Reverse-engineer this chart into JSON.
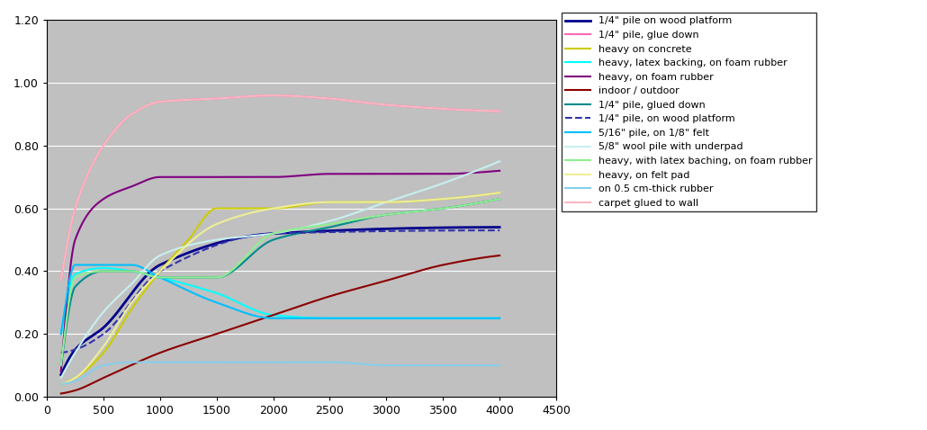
{
  "xlim": [
    0,
    4500
  ],
  "ylim": [
    0.0,
    1.2
  ],
  "yticks": [
    0.0,
    0.2,
    0.4,
    0.6,
    0.8,
    1.0,
    1.2
  ],
  "xticks": [
    0,
    500,
    1000,
    1500,
    2000,
    2500,
    3000,
    3500,
    4000,
    4500
  ],
  "bg_color": "#c0c0c0",
  "fig_width": 10.3,
  "fig_height": 4.78,
  "series": [
    {
      "label": "1/4\" pile on wood platform",
      "color": "#00008B",
      "linewidth": 2.0,
      "linestyle": "-",
      "x": [
        125,
        250,
        500,
        1000,
        2000,
        4000
      ],
      "y": [
        0.07,
        0.15,
        0.22,
        0.42,
        0.52,
        0.54
      ]
    },
    {
      "label": "1/4\" pile, glue down",
      "color": "#FF69B4",
      "linewidth": 1.5,
      "linestyle": "-",
      "x": [
        125,
        250,
        500,
        750,
        1000,
        1500,
        2000,
        2500,
        3000,
        4000
      ],
      "y": [
        0.37,
        0.6,
        0.8,
        0.9,
        0.94,
        0.95,
        0.96,
        0.95,
        0.93,
        0.91
      ]
    },
    {
      "label": "heavy on concrete",
      "color": "#CCCC00",
      "linewidth": 1.5,
      "linestyle": "-",
      "x": [
        125,
        250,
        500,
        750,
        1000,
        1250,
        1500,
        2000,
        2500,
        3000,
        3500,
        4000
      ],
      "y": [
        0.04,
        0.06,
        0.14,
        0.28,
        0.4,
        0.5,
        0.6,
        0.6,
        0.62,
        0.62,
        0.63,
        0.65
      ]
    },
    {
      "label": "heavy, latex backing, on foam rubber",
      "color": "#00FFFF",
      "linewidth": 1.5,
      "linestyle": "-",
      "x": [
        125,
        250,
        500,
        750,
        1000,
        1500,
        2000,
        2500,
        3000,
        3500,
        4000
      ],
      "y": [
        0.2,
        0.39,
        0.41,
        0.4,
        0.38,
        0.33,
        0.26,
        0.25,
        0.25,
        0.25,
        0.25
      ]
    },
    {
      "label": "heavy, on foam rubber",
      "color": "#800080",
      "linewidth": 1.5,
      "linestyle": "-",
      "x": [
        125,
        250,
        500,
        750,
        1000,
        1500,
        2000,
        2500,
        3000,
        3500,
        4000
      ],
      "y": [
        0.08,
        0.5,
        0.63,
        0.67,
        0.7,
        0.7,
        0.7,
        0.71,
        0.71,
        0.71,
        0.72
      ]
    },
    {
      "label": "indoor / outdoor",
      "color": "#8B0000",
      "linewidth": 1.5,
      "linestyle": "-",
      "x": [
        125,
        250,
        500,
        1000,
        1500,
        2000,
        2500,
        3000,
        3500,
        4000
      ],
      "y": [
        0.01,
        0.02,
        0.06,
        0.14,
        0.2,
        0.26,
        0.32,
        0.37,
        0.42,
        0.45
      ]
    },
    {
      "label": "1/4\" pile, glued down",
      "color": "#008B8B",
      "linewidth": 1.5,
      "linestyle": "-",
      "x": [
        125,
        250,
        500,
        750,
        1000,
        1500,
        2000,
        2500,
        3000,
        3500,
        4000
      ],
      "y": [
        0.1,
        0.35,
        0.4,
        0.4,
        0.38,
        0.38,
        0.5,
        0.54,
        0.58,
        0.6,
        0.63
      ]
    },
    {
      "label": "1/4\" pile, on wood platform",
      "color": "#3333AA",
      "linewidth": 1.5,
      "linestyle": "--",
      "x": [
        125,
        250,
        500,
        1000,
        2000,
        4000
      ],
      "y": [
        0.14,
        0.15,
        0.2,
        0.4,
        0.52,
        0.53
      ]
    },
    {
      "label": "5/16\" pile, on 1/8\" felt",
      "color": "#00BFFF",
      "linewidth": 1.5,
      "linestyle": "-",
      "x": [
        125,
        250,
        500,
        750,
        1000,
        1500,
        2000,
        2500,
        3000,
        3500,
        4000
      ],
      "y": [
        0.2,
        0.42,
        0.42,
        0.42,
        0.38,
        0.3,
        0.25,
        0.25,
        0.25,
        0.25,
        0.25
      ]
    },
    {
      "label": "5/8\" wool pile with underpad",
      "color": "#C8F0F0",
      "linewidth": 1.5,
      "linestyle": "-",
      "x": [
        125,
        250,
        500,
        750,
        1000,
        1500,
        2000,
        2500,
        3000,
        3500,
        4000
      ],
      "y": [
        0.06,
        0.14,
        0.27,
        0.36,
        0.45,
        0.5,
        0.52,
        0.56,
        0.62,
        0.68,
        0.75
      ]
    },
    {
      "label": "heavy, with latex baching, on foam rubber",
      "color": "#90EE90",
      "linewidth": 1.5,
      "linestyle": "-",
      "x": [
        125,
        250,
        500,
        750,
        1000,
        1500,
        2000,
        2500,
        3000,
        3500,
        4000
      ],
      "y": [
        0.1,
        0.38,
        0.4,
        0.4,
        0.38,
        0.38,
        0.52,
        0.55,
        0.58,
        0.6,
        0.63
      ]
    },
    {
      "label": "heavy, on felt pad",
      "color": "#EEEE99",
      "linewidth": 1.5,
      "linestyle": "-",
      "x": [
        125,
        250,
        500,
        750,
        1000,
        1500,
        2000,
        2500,
        3000,
        3500,
        4000
      ],
      "y": [
        0.04,
        0.06,
        0.16,
        0.3,
        0.4,
        0.55,
        0.6,
        0.62,
        0.62,
        0.63,
        0.65
      ]
    },
    {
      "label": "on 0.5 cm-thick rubber",
      "color": "#87CEEB",
      "linewidth": 1.5,
      "linestyle": "-",
      "x": [
        125,
        250,
        500,
        750,
        1000,
        1500,
        2000,
        2500,
        3000,
        3500,
        4000
      ],
      "y": [
        0.04,
        0.05,
        0.1,
        0.11,
        0.11,
        0.11,
        0.11,
        0.11,
        0.1,
        0.1,
        0.1
      ]
    },
    {
      "label": "carpet glued to wall",
      "color": "#FFB6C1",
      "linewidth": 1.5,
      "linestyle": "-",
      "x": [
        125,
        250,
        500,
        750,
        1000,
        1500,
        2000,
        2500,
        3000,
        4000
      ],
      "y": [
        0.37,
        0.6,
        0.8,
        0.9,
        0.94,
        0.95,
        0.96,
        0.95,
        0.93,
        0.91
      ]
    }
  ]
}
